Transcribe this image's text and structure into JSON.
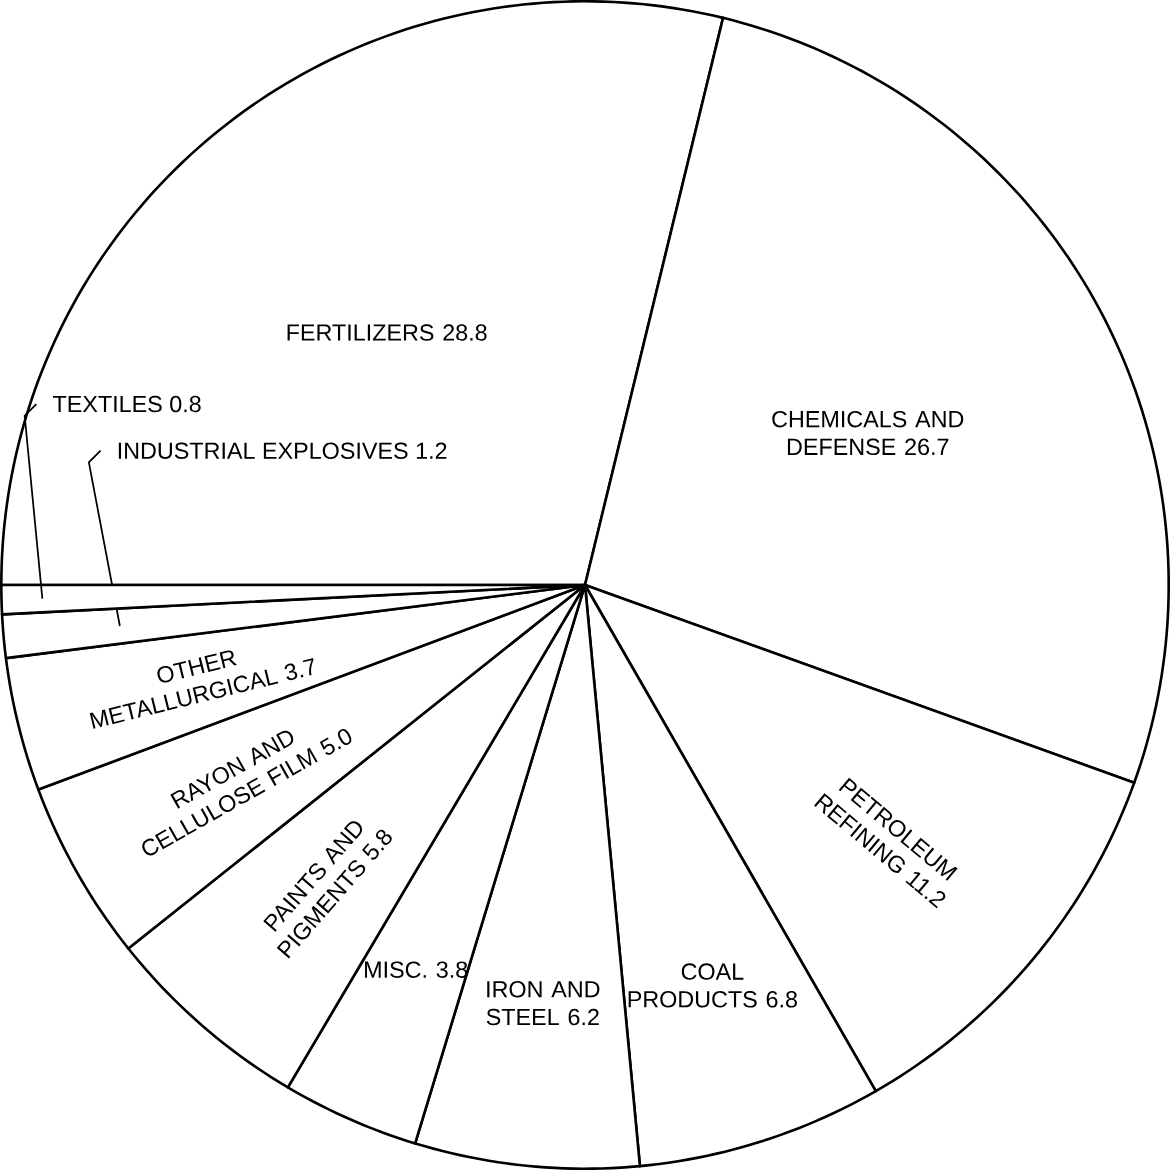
{
  "chart_data": {
    "type": "pie",
    "categories": [
      "FERTILIZERS",
      "CHEMICALS AND DEFENSE",
      "PETROLEUM REFINING",
      "COAL PRODUCTS",
      "IRON AND STEEL",
      "MISC.",
      "PAINTS AND PIGMENTS",
      "RAYON AND CELLULOSE FILM",
      "OTHER METALLURGICAL",
      "INDUSTRIAL EXPLOSIVES",
      "TEXTILES"
    ],
    "values": [
      28.8,
      26.7,
      11.2,
      6.8,
      6.2,
      3.8,
      5.8,
      5.0,
      3.7,
      1.2,
      0.8
    ],
    "colors": [
      "#ffffff",
      "#ffffff",
      "#ffffff",
      "#ffffff",
      "#ffffff",
      "#ffffff",
      "#ffffff",
      "#ffffff",
      "#ffffff",
      "#ffffff",
      "#ffffff"
    ],
    "value_labels": [
      "28.8",
      "26.7",
      "11.2",
      "6.8",
      "6.2",
      "3.8",
      "5.8",
      "5.0",
      "3.7",
      "1.2",
      "0.8"
    ]
  }
}
